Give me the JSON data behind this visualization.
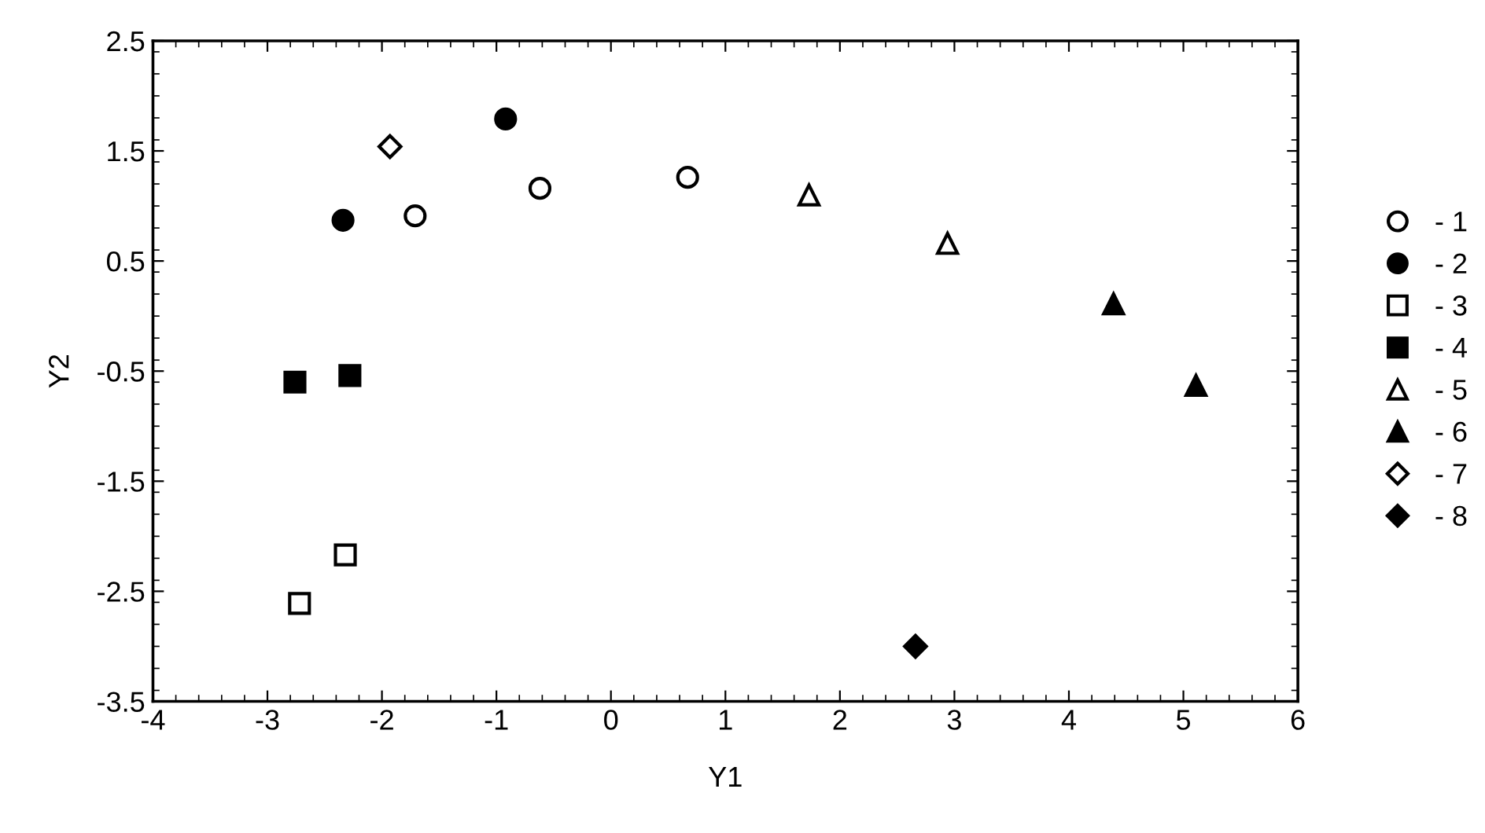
{
  "chart_data": {
    "type": "scatter",
    "xlabel": "Y1",
    "ylabel": "Y2",
    "xlim": [
      -4,
      6
    ],
    "xticks": [
      -4,
      -3,
      -2,
      -1,
      0,
      1,
      2,
      3,
      4,
      5,
      6
    ],
    "ylim": [
      -3.5,
      2.5
    ],
    "yticks": [
      -3.5,
      -2.5,
      -1.5,
      -0.5,
      0.5,
      1.5,
      2.5
    ],
    "grid": false,
    "legend": "right",
    "series": [
      {
        "name": "- 1",
        "color": "#ffffff",
        "marker": "circle",
        "x": [
          -1.71,
          -0.62,
          0.67
        ],
        "values": [
          0.91,
          1.16,
          1.26
        ]
      },
      {
        "name": "- 2",
        "color": "#000000",
        "marker": "circle",
        "x": [
          -2.34,
          -0.92
        ],
        "values": [
          0.87,
          1.79
        ]
      },
      {
        "name": "- 3",
        "color": "#ffffff",
        "marker": "square",
        "x": [
          -2.72,
          -2.32
        ],
        "values": [
          -2.61,
          -2.17
        ]
      },
      {
        "name": "- 4",
        "color": "#000000",
        "marker": "square",
        "x": [
          -2.76,
          -2.28
        ],
        "values": [
          -0.6,
          -0.54
        ]
      },
      {
        "name": "- 5",
        "color": "#ffffff",
        "marker": "triangle",
        "x": [
          1.73,
          2.94
        ],
        "values": [
          1.1,
          0.66
        ]
      },
      {
        "name": "- 6",
        "color": "#000000",
        "marker": "triangle",
        "x": [
          4.39,
          5.11
        ],
        "values": [
          0.11,
          -0.63
        ]
      },
      {
        "name": "- 7",
        "color": "#ffffff",
        "marker": "diamond",
        "x": [
          -1.93
        ],
        "values": [
          1.54
        ]
      },
      {
        "name": "- 8",
        "color": "#000000",
        "marker": "diamond",
        "x": [
          2.66
        ],
        "values": [
          -3.0
        ]
      }
    ]
  }
}
